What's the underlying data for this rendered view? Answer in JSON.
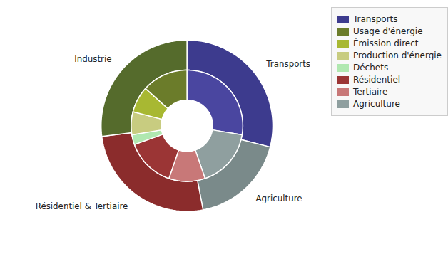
{
  "chart_data": {
    "type": "pie",
    "rings": [
      {
        "categories": [
          "Transports",
          "Agriculture",
          "Résidentiel & Tertiaire",
          "Industrie"
        ],
        "values": [
          29,
          18,
          26,
          27
        ],
        "colors": [
          "#3d3b8e",
          "#7a8a8a",
          "#8b2c2c",
          "#556b2c"
        ]
      },
      {
        "categories": [
          "Transports",
          "Agriculture",
          "Tertiaire",
          "Résidentiel",
          "Déchets",
          "Production d'énergie",
          "Émission direct",
          "Usage d'énergie"
        ],
        "values": [
          29,
          18,
          11,
          15,
          3,
          7,
          8,
          14
        ],
        "colors": [
          "#4a46a0",
          "#8f9f9f",
          "#c87878",
          "#9b3535",
          "#b0e8b0",
          "#c8cc80",
          "#a8b832",
          "#6b7c2a"
        ]
      }
    ],
    "legend": "upper right",
    "legend_items": [
      {
        "label": "Transports",
        "color": "#3d3b8e"
      },
      {
        "label": "Usage d'énergie",
        "color": "#6b7c2a"
      },
      {
        "label": "Émission direct",
        "color": "#a8b832"
      },
      {
        "label": "Production d'énergie",
        "color": "#c8cc80"
      },
      {
        "label": "Déchets",
        "color": "#b0e8b0"
      },
      {
        "label": "Résidentiel",
        "color": "#9b3535"
      },
      {
        "label": "Tertiaire",
        "color": "#c87878"
      },
      {
        "label": "Agriculture",
        "color": "#8f9f9f"
      }
    ]
  }
}
